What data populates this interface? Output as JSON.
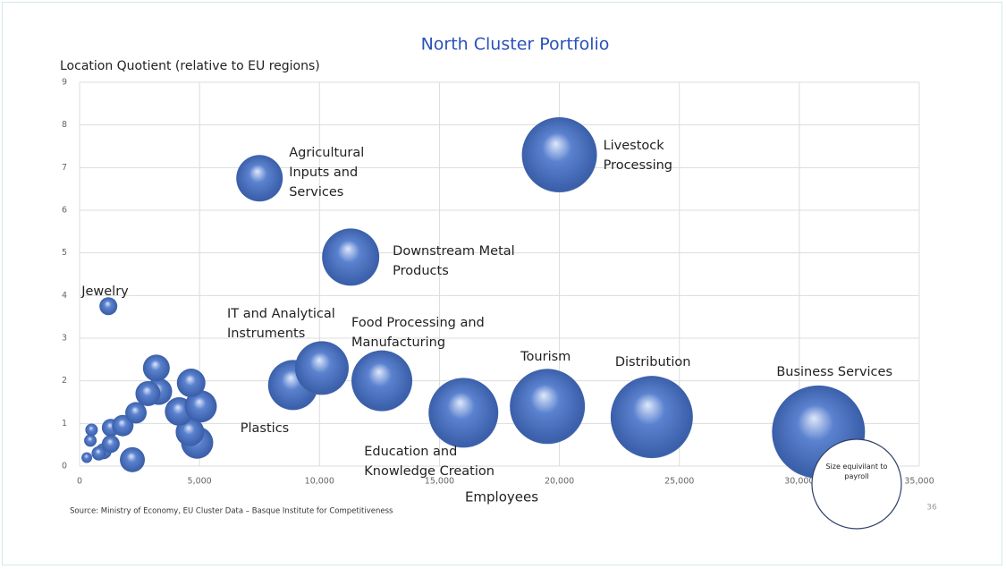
{
  "chart_data": {
    "type": "bubble",
    "title": "North Cluster Portfolio",
    "y_label": "Location Quotient (relative to EU regions)",
    "x_label": "Employees",
    "source": "Source: Ministry of Economy, EU Cluster Data – Basque Institute for Competitiveness",
    "page_number": "36",
    "size_note": "Size equivilant to payroll",
    "color": "#5b82cf",
    "grid": true,
    "xlim": [
      0,
      35000
    ],
    "ylim": [
      0,
      9
    ],
    "xticks": [
      0,
      {
        "value": 5000,
        "label": "5,000"
      },
      {
        "value": 10000,
        "label": "10,000"
      },
      {
        "value": 15000,
        "label": "15,000"
      },
      {
        "value": 20000,
        "label": "20,000"
      },
      {
        "value": 25000,
        "label": "25,000"
      },
      {
        "value": 30000,
        "label": "30,000"
      },
      {
        "value": 35000,
        "label": "35,000"
      }
    ],
    "yticks": [
      0,
      1,
      2,
      3,
      4,
      5,
      6,
      7,
      8,
      9
    ],
    "labels": [
      "Jewelry",
      "Agricultural\nInputs and\nServices",
      "Livestock\nProcessing",
      "Downstream Metal\nProducts",
      "IT and Analytical\nInstruments",
      "Plastics",
      "Food Processing and\nManufacturing",
      "Education and\nKnowledge Creation",
      "Tourism",
      "Distribution",
      "Business Services",
      null,
      null,
      null,
      null,
      null,
      null,
      null,
      null,
      null,
      null,
      null,
      null,
      null,
      null,
      null,
      null,
      null,
      null
    ],
    "x": [
      1200,
      7500,
      20000,
      11300,
      10100,
      8900,
      12600,
      16000,
      19500,
      23850,
      30800,
      3200,
      2850,
      3300,
      4650,
      5050,
      4150,
      4600,
      4900,
      2350,
      1800,
      1300,
      1300,
      500,
      450,
      800,
      300,
      2200,
      1000
    ],
    "values": [
      3.75,
      6.75,
      7.3,
      4.9,
      2.3,
      1.9,
      2.0,
      1.25,
      1.4,
      1.15,
      0.8,
      2.3,
      1.7,
      1.75,
      1.95,
      1.4,
      1.28,
      0.8,
      0.55,
      1.25,
      0.95,
      0.9,
      0.52,
      0.85,
      0.6,
      0.3,
      0.2,
      0.15,
      0.35
    ],
    "sizes": [
      100,
      676,
      1764,
      1024,
      900,
      784,
      1156,
      1521,
      1764,
      2116,
      2704,
      225,
      196,
      225,
      256,
      324,
      256,
      256,
      324,
      144,
      144,
      100,
      100,
      49,
      49,
      64,
      36,
      196,
      81
    ]
  }
}
